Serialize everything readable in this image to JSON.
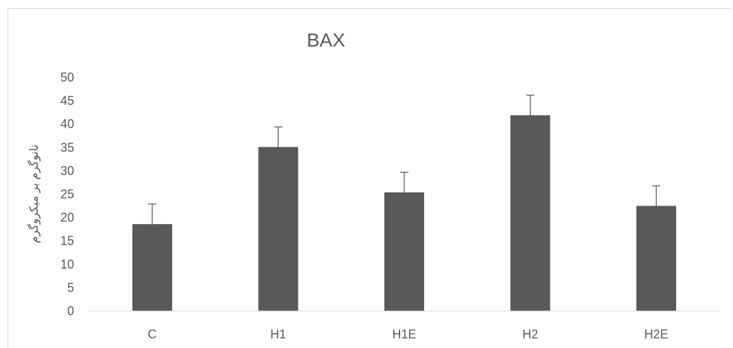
{
  "chart_data": {
    "type": "bar",
    "title": "BAX",
    "xlabel": "",
    "ylabel": "نانوگرم بر میکروگرم",
    "categories": [
      "C",
      "H1",
      "H1E",
      "H2",
      "H2E"
    ],
    "values": [
      18.6,
      35.1,
      25.4,
      41.9,
      22.5
    ],
    "error": [
      4.3,
      4.3,
      4.3,
      4.3,
      4.3
    ],
    "ylim": [
      0,
      50
    ],
    "yticks": [
      "0",
      "5",
      "10",
      "15",
      "20",
      "25",
      "30",
      "35",
      "40",
      "45",
      "50"
    ],
    "grid": false,
    "bar_color": "#595959",
    "error_color": "#595959"
  }
}
